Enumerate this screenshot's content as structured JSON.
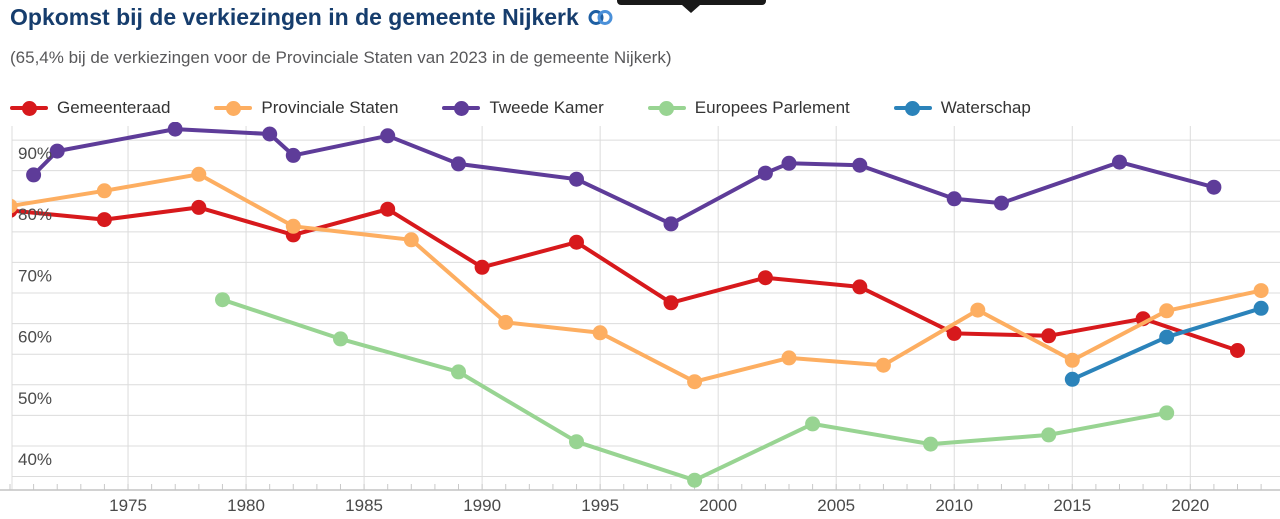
{
  "header": {
    "title": "Opkomst bij de verkiezingen in de gemeente Nijkerk",
    "subtitle": "(65,4% bij de verkiezingen voor de Provinciale Staten van 2023 in de gemeente Nijkerk)",
    "title_color": "#163d6d",
    "link_icon_colors": [
      "#1e5fa3",
      "#4a90d9"
    ]
  },
  "tooltip_remnant": {
    "color": "#191919"
  },
  "chart_data": {
    "type": "line",
    "title": "Opkomst bij de verkiezingen in de gemeente Nijkerk",
    "subtitle": "(65,4% bij de verkiezingen voor de Provinciale Staten van 2023 in de gemeente Nijkerk)",
    "y_unit": "%",
    "xlim": [
      1970,
      2023.8
    ],
    "ylim": [
      32.8,
      92.3
    ],
    "x_tick_labels": [
      1975,
      1980,
      1985,
      1990,
      1995,
      2000,
      2005,
      2010,
      2015,
      2020
    ],
    "y_tick_labels": [
      40,
      50,
      60,
      70,
      80,
      90
    ],
    "y_grid_step": 5,
    "x_grid_step": 5,
    "x_minor_tick_every": 1,
    "grid": true,
    "legend_position": "top",
    "grid_color": "#dcdcdc",
    "axis_color": "#c4c4c4",
    "tick_label_color": "#4a4a4a",
    "series": [
      {
        "name": "Gemeenteraad",
        "color": "#d7191c",
        "points": [
          [
            1970,
            78.5
          ],
          [
            1974,
            77.0
          ],
          [
            1978,
            79.0
          ],
          [
            1982,
            74.5
          ],
          [
            1986,
            78.7
          ],
          [
            1990,
            69.2
          ],
          [
            1994,
            73.3
          ],
          [
            1998,
            63.4
          ],
          [
            2002,
            67.5
          ],
          [
            2006,
            66.0
          ],
          [
            2010,
            58.4
          ],
          [
            2014,
            58.0
          ],
          [
            2018,
            60.8
          ],
          [
            2022,
            55.6
          ]
        ]
      },
      {
        "name": "Provinciale Staten",
        "color": "#fdae61",
        "points": [
          [
            1970,
            79.2
          ],
          [
            1974,
            81.7
          ],
          [
            1978,
            84.4
          ],
          [
            1982,
            75.9
          ],
          [
            1987,
            73.7
          ],
          [
            1991,
            60.2
          ],
          [
            1995,
            58.5
          ],
          [
            1999,
            50.5
          ],
          [
            2003,
            54.4
          ],
          [
            2007,
            53.2
          ],
          [
            2011,
            62.2
          ],
          [
            2015,
            54.0
          ],
          [
            2019,
            62.1
          ],
          [
            2023,
            65.4
          ]
        ]
      },
      {
        "name": "Tweede Kamer",
        "color": "#5e3c99",
        "points": [
          [
            1971,
            84.3
          ],
          [
            1972,
            88.2
          ],
          [
            1977,
            91.8
          ],
          [
            1981,
            91.0
          ],
          [
            1982,
            87.5
          ],
          [
            1986,
            90.7
          ],
          [
            1989,
            86.1
          ],
          [
            1994,
            83.6
          ],
          [
            1998,
            76.3
          ],
          [
            2002,
            84.6
          ],
          [
            2003,
            86.2
          ],
          [
            2006,
            85.9
          ],
          [
            2010,
            80.4
          ],
          [
            2012,
            79.7
          ],
          [
            2017,
            86.4
          ],
          [
            2021,
            82.3
          ]
        ]
      },
      {
        "name": "Europees Parlement",
        "color": "#98d492",
        "points": [
          [
            1979,
            63.9
          ],
          [
            1984,
            57.5
          ],
          [
            1989,
            52.1
          ],
          [
            1994,
            40.7
          ],
          [
            1999,
            34.4
          ],
          [
            2004,
            43.6
          ],
          [
            2009,
            40.3
          ],
          [
            2014,
            41.8
          ],
          [
            2019,
            45.4
          ]
        ]
      },
      {
        "name": "Waterschap",
        "color": "#2b83ba",
        "points": [
          [
            2015,
            50.9
          ],
          [
            2019,
            57.8
          ],
          [
            2023,
            62.5
          ]
        ]
      }
    ]
  }
}
